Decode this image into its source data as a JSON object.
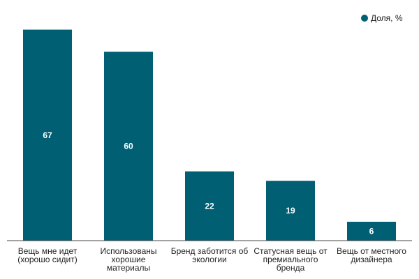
{
  "chart_data": {
    "type": "bar",
    "categories": [
      [
        "Вещь мне идет",
        "(хорошо сидит)"
      ],
      [
        "Использованы",
        "хорошие",
        "материалы"
      ],
      [
        "Бренд заботится об",
        "экологии"
      ],
      [
        "Статусная вещь от",
        "премиального",
        "бренда"
      ],
      [
        "Вещь от местного",
        "дизайнера"
      ]
    ],
    "series": [
      {
        "name": "Доля, %",
        "values": [
          67,
          60,
          22,
          19,
          6
        ]
      }
    ],
    "ylim": [
      0,
      70
    ],
    "grid": false,
    "legend": "top-right",
    "data_labels": true,
    "colors": {
      "bar": "#005f73",
      "axis": "#444444"
    }
  }
}
